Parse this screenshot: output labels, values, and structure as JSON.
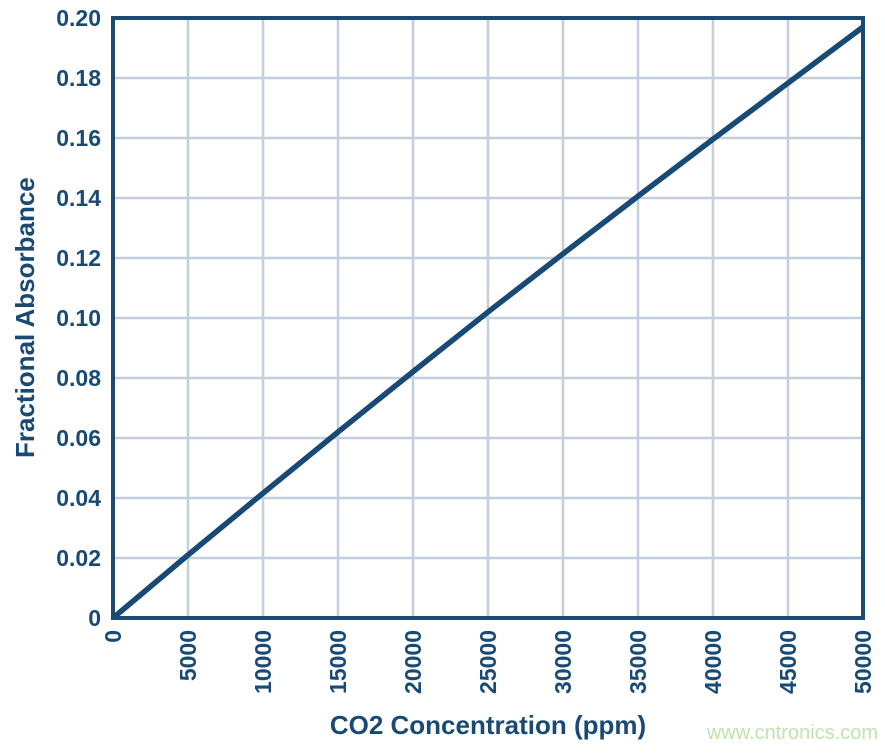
{
  "chart_data": {
    "type": "line",
    "title": "",
    "xlabel": "CO2 Concentration (ppm)",
    "ylabel": "Fractional Absorbance",
    "xlim": [
      0,
      50000
    ],
    "ylim": [
      0,
      0.2
    ],
    "grid": true,
    "legend": "none",
    "x_ticks": [
      0,
      5000,
      10000,
      15000,
      20000,
      25000,
      30000,
      35000,
      40000,
      45000,
      50000
    ],
    "x_tick_labels": [
      "0",
      "5000",
      "10000",
      "15000",
      "20000",
      "25000",
      "30000",
      "35000",
      "40000",
      "45000",
      "50000"
    ],
    "y_ticks": [
      0,
      0.02,
      0.04,
      0.06,
      0.08,
      0.1,
      0.12,
      0.14,
      0.16,
      0.18,
      0.2
    ],
    "y_tick_labels": [
      "0",
      "0.02",
      "0.04",
      "0.06",
      "0.08",
      "0.10",
      "0.12",
      "0.14",
      "0.16",
      "0.18",
      "0.20"
    ],
    "series": [
      {
        "name": "fractional-absorbance-vs-co2",
        "x": [
          0,
          5000,
          10000,
          15000,
          20000,
          25000,
          30000,
          35000,
          40000,
          45000,
          50000
        ],
        "y": [
          0,
          0.021,
          0.0416,
          0.062,
          0.0821,
          0.102,
          0.1214,
          0.1406,
          0.1596,
          0.1783,
          0.197
        ]
      }
    ]
  },
  "watermark": {
    "text": "www.cntronics.com"
  },
  "colors": {
    "line": "#194A75",
    "border": "#1C4A74",
    "grid": "#C3CFDC",
    "text": "#194A75",
    "watermark": "#C2E3AD",
    "background": "#FFFFFF"
  }
}
